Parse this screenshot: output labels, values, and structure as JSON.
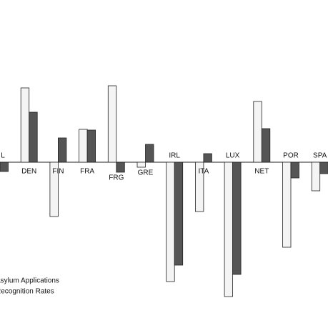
{
  "chart_data": {
    "type": "bar",
    "categories": [
      "L",
      "DEN",
      "FIN",
      "FRA",
      "FRG",
      "GRE",
      "IRL",
      "ITA",
      "LUX",
      "NET",
      "POR",
      "SPA"
    ],
    "series": [
      {
        "name": "Asylum Applications",
        "color": "#f4f4f4",
        "values": [
          null,
          104,
          -76,
          46,
          107,
          -7,
          -167,
          -69,
          -188,
          85,
          -119,
          -40
        ]
      },
      {
        "name": "Recognition Rates",
        "color": "#555555",
        "values": [
          -13,
          70,
          34,
          45,
          -14,
          25,
          -144,
          12,
          -157,
          47,
          -22,
          -16
        ]
      }
    ],
    "ylim": [
      -232,
      227
    ]
  }
}
